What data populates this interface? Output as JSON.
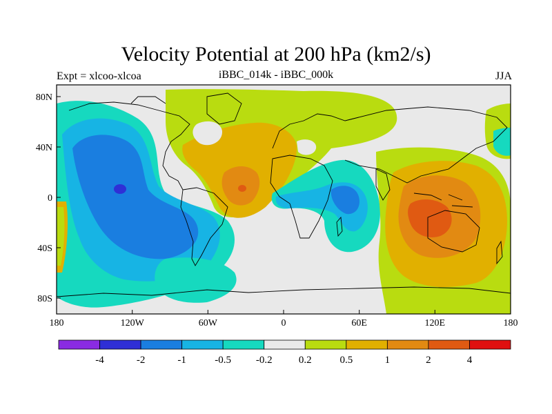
{
  "title": "Velocity Potential at 200 hPa (km2/s)",
  "left_label": "Expt = xlcoo-xlcoa",
  "center_label": "iBBC_014k - iBBC_000k",
  "right_label": "JJA",
  "axes": {
    "lon_ticks": [
      "180",
      "120W",
      "60W",
      "0",
      "60E",
      "120E",
      "180"
    ],
    "lat_ticks": [
      "80N",
      "40N",
      "0",
      "40S",
      "80S"
    ]
  },
  "colorbar": {
    "colors": [
      "#8a2be2",
      "#2f2fd6",
      "#1a7ee0",
      "#17b4e4",
      "#16d9bf",
      "#e9e9e9",
      "#b9dc10",
      "#e1b000",
      "#e28a12",
      "#e05a12",
      "#e01010"
    ],
    "labels": [
      "-4",
      "-2",
      "-1",
      "-0.5",
      "-0.2",
      "0.2",
      "0.5",
      "1",
      "2",
      "4"
    ]
  }
}
